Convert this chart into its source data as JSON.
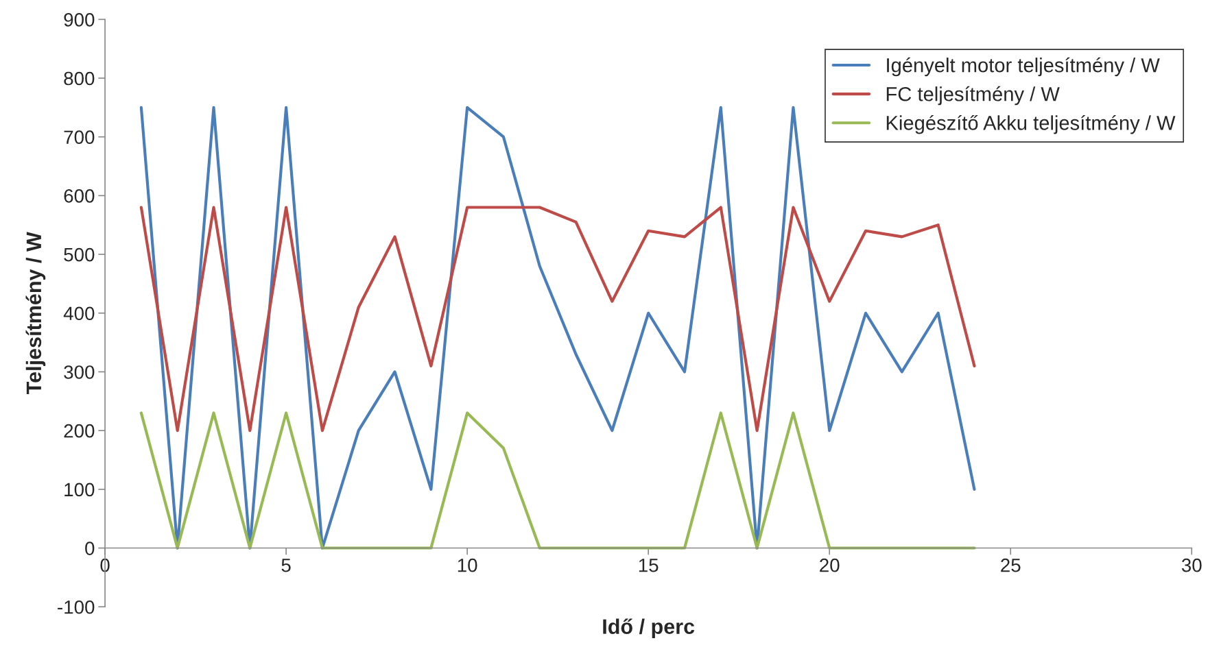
{
  "chart_data": {
    "type": "line",
    "xlabel": "Idő / perc",
    "ylabel": "Teljesítmény / W",
    "x": [
      1,
      2,
      3,
      4,
      5,
      6,
      7,
      8,
      9,
      10,
      11,
      12,
      13,
      14,
      15,
      16,
      17,
      18,
      19,
      20,
      21,
      22,
      23,
      24
    ],
    "series": [
      {
        "name": "Igényelt motor teljesítmény / W",
        "color": "#4a7ebb",
        "values": [
          750,
          0,
          750,
          0,
          750,
          0,
          200,
          300,
          100,
          750,
          700,
          480,
          330,
          200,
          400,
          300,
          750,
          0,
          750,
          200,
          400,
          300,
          400,
          100
        ]
      },
      {
        "name": "FC teljesítmény / W",
        "color": "#be4b48",
        "values": [
          580,
          200,
          580,
          200,
          580,
          200,
          410,
          530,
          310,
          580,
          580,
          580,
          555,
          420,
          540,
          530,
          580,
          200,
          580,
          420,
          540,
          530,
          550,
          310
        ]
      },
      {
        "name": "Kiegészítő Akku teljesítmény / W",
        "color": "#98b954",
        "values": [
          230,
          0,
          230,
          0,
          230,
          0,
          0,
          0,
          0,
          230,
          170,
          0,
          0,
          0,
          0,
          0,
          230,
          0,
          230,
          0,
          0,
          0,
          0,
          0
        ]
      }
    ],
    "xlim": [
      0,
      30
    ],
    "xticks": [
      0,
      5,
      10,
      15,
      20,
      25,
      30
    ],
    "ylim": [
      -100,
      900
    ],
    "yticks": [
      -100,
      0,
      100,
      200,
      300,
      400,
      500,
      600,
      700,
      800,
      900
    ],
    "grid": false,
    "legend": "top right",
    "line_style": "solid"
  }
}
